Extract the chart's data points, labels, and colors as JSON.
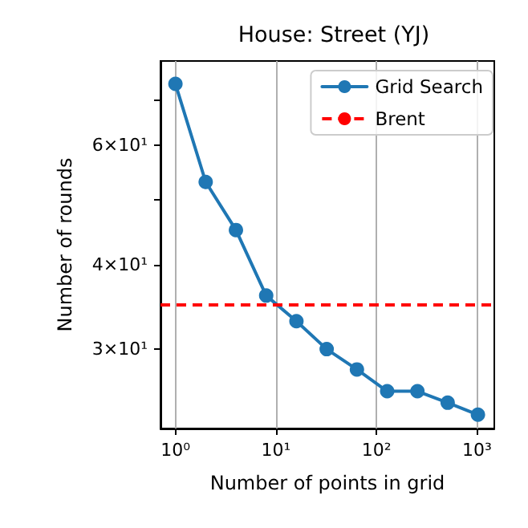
{
  "chart_data": {
    "type": "line",
    "title": "House: Street (YJ)",
    "xlabel": "Number of points in grid",
    "ylabel": "Number of rounds",
    "x": [
      1,
      2,
      4,
      8,
      16,
      32,
      64,
      128,
      256,
      512,
      1024
    ],
    "series": [
      {
        "name": "Grid Search",
        "color": "#1f77b4",
        "values": [
          74,
          53,
          45,
          36,
          33,
          30,
          28,
          26,
          26,
          25,
          24
        ]
      }
    ],
    "ref_lines": [
      {
        "axis": "y",
        "value": 35,
        "label": "Brent",
        "color": "#ff0000",
        "line_style": "dashed"
      }
    ],
    "log": "xy",
    "xlim": [
      0.71,
      1490
    ],
    "ylim": [
      22.9,
      80
    ],
    "xticks": [
      {
        "value": 1,
        "label": "10⁰"
      },
      {
        "value": 10,
        "label": "10¹"
      },
      {
        "value": 100,
        "label": "10²"
      },
      {
        "value": 1000,
        "label": "10³"
      }
    ],
    "yticks": [
      {
        "value": 30,
        "label": "3×10¹"
      },
      {
        "value": 40,
        "label": "4×10¹"
      },
      {
        "value": 50,
        "label": null
      },
      {
        "value": 60,
        "label": "6×10¹"
      },
      {
        "value": 70,
        "label": null
      }
    ],
    "grid": "x",
    "legend": "top right",
    "marker": "circle",
    "line_style": "solid"
  }
}
